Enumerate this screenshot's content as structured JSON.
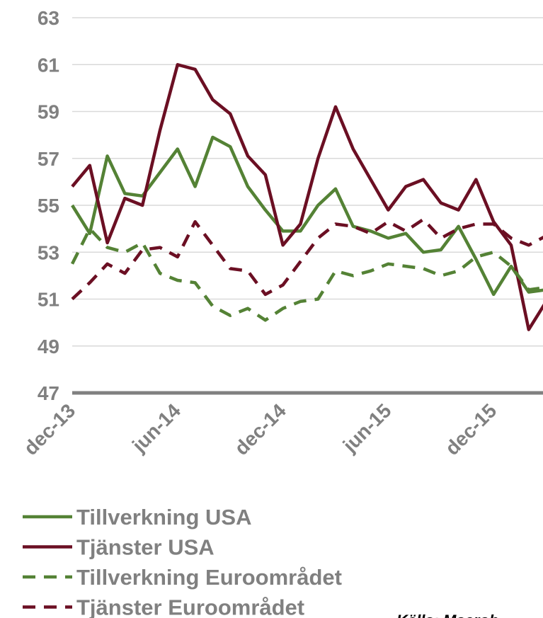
{
  "chart_data": {
    "type": "line",
    "categories": [
      "dec-13",
      null,
      null,
      null,
      null,
      null,
      "jun-14",
      null,
      null,
      null,
      null,
      null,
      "dec-14",
      null,
      null,
      null,
      null,
      null,
      "jun-15",
      null,
      null,
      null,
      null,
      null,
      "dec-15",
      null,
      null,
      null
    ],
    "series": [
      {
        "name": "Tillverkning USA",
        "color": "#548235",
        "dashed": false,
        "values": [
          55.0,
          53.8,
          57.1,
          55.5,
          55.4,
          56.4,
          57.4,
          55.8,
          57.9,
          57.5,
          55.8,
          54.8,
          53.9,
          53.9,
          55.0,
          55.7,
          54.1,
          53.9,
          53.6,
          53.8,
          53.0,
          53.1,
          54.1,
          52.7,
          51.2,
          52.4,
          51.3,
          51.4
        ]
      },
      {
        "name": "Tjänster USA",
        "color": "#6b0f23",
        "dashed": false,
        "values": [
          55.8,
          56.7,
          53.4,
          55.3,
          55.0,
          58.2,
          61.0,
          60.8,
          59.5,
          58.9,
          57.1,
          56.3,
          53.3,
          54.2,
          57.0,
          59.2,
          57.4,
          56.1,
          54.8,
          55.8,
          56.1,
          55.1,
          54.8,
          56.1,
          54.3,
          53.3,
          49.7,
          50.9
        ]
      },
      {
        "name": "Tillverkning Euroområdet",
        "color": "#548235",
        "dashed": true,
        "values": [
          52.5,
          54.0,
          53.2,
          53.0,
          53.4,
          52.1,
          51.8,
          51.7,
          50.7,
          50.3,
          50.6,
          50.1,
          50.6,
          50.9,
          51.0,
          52.2,
          52.0,
          52.2,
          52.5,
          52.4,
          52.3,
          52.0,
          52.2,
          52.8,
          53.0,
          52.4,
          51.4,
          51.5
        ]
      },
      {
        "name": "Tjänster Euroområdet",
        "color": "#6b0f23",
        "dashed": true,
        "values": [
          51.0,
          51.7,
          52.5,
          52.1,
          53.1,
          53.2,
          52.8,
          54.3,
          53.3,
          52.3,
          52.2,
          51.2,
          51.6,
          52.6,
          53.6,
          54.2,
          54.1,
          53.8,
          54.3,
          53.9,
          54.4,
          53.6,
          54.0,
          54.2,
          54.2,
          53.6,
          53.3,
          53.7
        ]
      }
    ],
    "ylim": [
      47,
      63
    ],
    "yticks": [
      47,
      49,
      51,
      53,
      55,
      57,
      59,
      61,
      63
    ],
    "grid": true,
    "source": "Källa: Macrob"
  }
}
